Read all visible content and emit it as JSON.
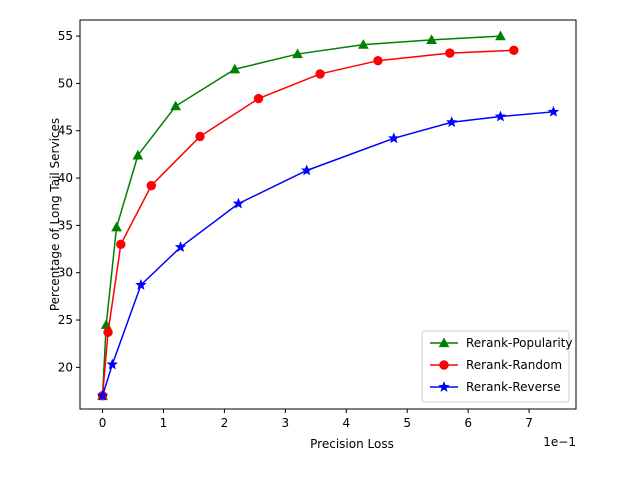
{
  "chart_data": {
    "type": "line",
    "title": "",
    "xlabel": "Precision Loss",
    "ylabel": "Percentage of Long Tail Services",
    "x_offset_label": "1e−1",
    "xlim": [
      -0.037,
      0.777
    ],
    "ylim": [
      15.6,
      56.7
    ],
    "x_ticks": [
      0,
      0.1,
      0.2,
      0.3,
      0.4,
      0.5,
      0.6,
      0.7
    ],
    "x_tick_labels": [
      "0",
      "1",
      "2",
      "3",
      "4",
      "5",
      "6",
      "7"
    ],
    "y_ticks": [
      20,
      25,
      30,
      35,
      40,
      45,
      50,
      55
    ],
    "y_tick_labels": [
      "20",
      "25",
      "30",
      "35",
      "40",
      "45",
      "50",
      "55"
    ],
    "grid": false,
    "legend_position": "lower-right",
    "series": [
      {
        "name": "Rerank-Popularity",
        "color": "#008000",
        "marker": "triangle",
        "x": [
          0,
          0.006,
          0.023,
          0.058,
          0.12,
          0.217,
          0.32,
          0.428,
          0.54,
          0.653
        ],
        "y": [
          17.0,
          24.5,
          34.8,
          42.4,
          47.6,
          51.5,
          53.1,
          54.1,
          54.6,
          55.0
        ]
      },
      {
        "name": "Rerank-Random",
        "color": "#ff0000",
        "marker": "circle",
        "x": [
          0,
          0.009,
          0.03,
          0.08,
          0.16,
          0.256,
          0.357,
          0.452,
          0.57,
          0.675
        ],
        "y": [
          17.0,
          23.7,
          33.0,
          39.2,
          44.4,
          48.4,
          51.0,
          52.4,
          53.2,
          53.5
        ]
      },
      {
        "name": "Rerank-Reverse",
        "color": "#0000ff",
        "marker": "star",
        "x": [
          0,
          0.016,
          0.063,
          0.128,
          0.223,
          0.335,
          0.478,
          0.573,
          0.653,
          0.74
        ],
        "y": [
          17.0,
          20.3,
          28.7,
          32.7,
          37.3,
          40.8,
          44.2,
          45.9,
          46.5,
          47.0
        ]
      }
    ]
  }
}
